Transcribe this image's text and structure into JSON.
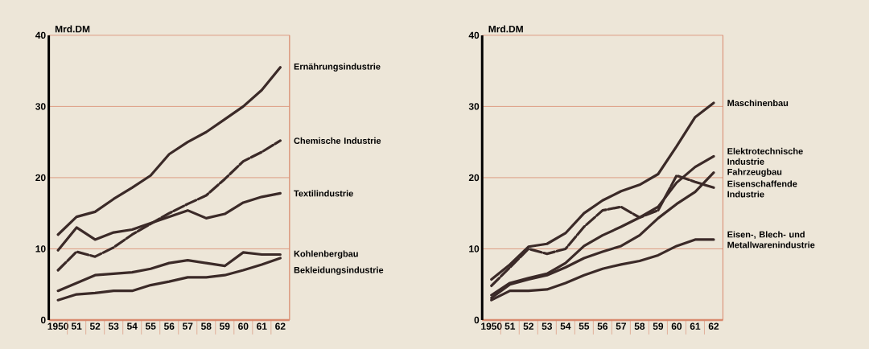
{
  "chart_data": [
    {
      "type": "line",
      "ylabel": "Mrd.DM",
      "ylim": [
        0,
        40
      ],
      "yticks": [
        0,
        10,
        20,
        30,
        40
      ],
      "grid": "y",
      "categories": [
        "1950",
        "51",
        "52",
        "53",
        "54",
        "55",
        "56",
        "57",
        "58",
        "59",
        "60",
        "61",
        "62"
      ],
      "series": [
        {
          "name": "Ernährungsindustrie",
          "color": "#3b2a28",
          "line_style": "solid",
          "values": [
            12.0,
            14.5,
            15.2,
            17.0,
            18.6,
            20.3,
            23.3,
            25.0,
            26.4,
            28.2,
            30.0,
            32.3,
            35.5
          ]
        },
        {
          "name": "Chemische Industrie",
          "color": "#3b2a28",
          "line_style": "dashed",
          "values": [
            7.0,
            9.6,
            8.9,
            10.2,
            12.0,
            13.5,
            15.0,
            16.3,
            17.5,
            19.8,
            22.3,
            23.6,
            25.2
          ]
        },
        {
          "name": "Textilindustrie",
          "color": "#3b2a28",
          "line_style": "solid",
          "values": [
            9.8,
            13.0,
            11.3,
            12.3,
            12.7,
            13.6,
            14.5,
            15.4,
            14.3,
            14.9,
            16.5,
            17.3,
            17.8
          ]
        },
        {
          "name": "Kohlenbergbau",
          "color": "#3b2a28",
          "line_style": "solid",
          "values": [
            4.1,
            5.2,
            6.3,
            6.5,
            6.7,
            7.2,
            8.0,
            8.4,
            8.0,
            7.6,
            9.5,
            9.2,
            9.2
          ]
        },
        {
          "name": "Bekleidungsindustrie",
          "color": "#3b2a28",
          "line_style": "solid",
          "values": [
            2.8,
            3.6,
            3.8,
            4.1,
            4.1,
            4.9,
            5.4,
            6.0,
            6.0,
            6.3,
            7.0,
            7.8,
            8.7
          ]
        }
      ]
    },
    {
      "type": "line",
      "ylabel": "Mrd.DM",
      "ylim": [
        0,
        40
      ],
      "yticks": [
        0,
        10,
        20,
        30,
        40
      ],
      "grid": "y",
      "categories": [
        "1950",
        "51",
        "52",
        "53",
        "54",
        "55",
        "56",
        "57",
        "58",
        "59",
        "60",
        "61",
        "62"
      ],
      "series": [
        {
          "name": "Maschinenbau",
          "color": "#3b2a28",
          "line_style": "solid",
          "values": [
            5.7,
            7.8,
            10.3,
            10.7,
            12.2,
            15.0,
            16.8,
            18.1,
            19.0,
            20.5,
            24.4,
            28.5,
            30.5
          ]
        },
        {
          "name": "Elektrotechnische Industrie",
          "color": "#3b2a28",
          "line_style": "solid",
          "values": [
            3.5,
            5.2,
            5.9,
            6.5,
            8.0,
            10.4,
            11.9,
            13.1,
            14.4,
            15.9,
            19.3,
            21.5,
            23.0
          ]
        },
        {
          "name": "Fahrzeugbau",
          "color": "#3b2a28",
          "line_style": "solid",
          "values": [
            3.1,
            5.0,
            5.7,
            6.3,
            7.4,
            8.7,
            9.6,
            10.4,
            11.9,
            14.3,
            16.3,
            18.0,
            20.7
          ]
        },
        {
          "name": "Eisenschaffende Industrie",
          "color": "#3b2a28",
          "line_style": "dashed",
          "values": [
            4.8,
            7.4,
            10.0,
            9.3,
            10.0,
            13.1,
            15.4,
            15.9,
            14.4,
            15.4,
            20.3,
            19.4,
            18.6
          ]
        },
        {
          "name": "Eisen-, Blech- und Metallwarenindustrie",
          "color": "#3b2a28",
          "line_style": "solid",
          "values": [
            2.8,
            4.1,
            4.1,
            4.3,
            5.2,
            6.3,
            7.2,
            7.8,
            8.3,
            9.1,
            10.4,
            11.3,
            11.3
          ]
        }
      ]
    }
  ]
}
